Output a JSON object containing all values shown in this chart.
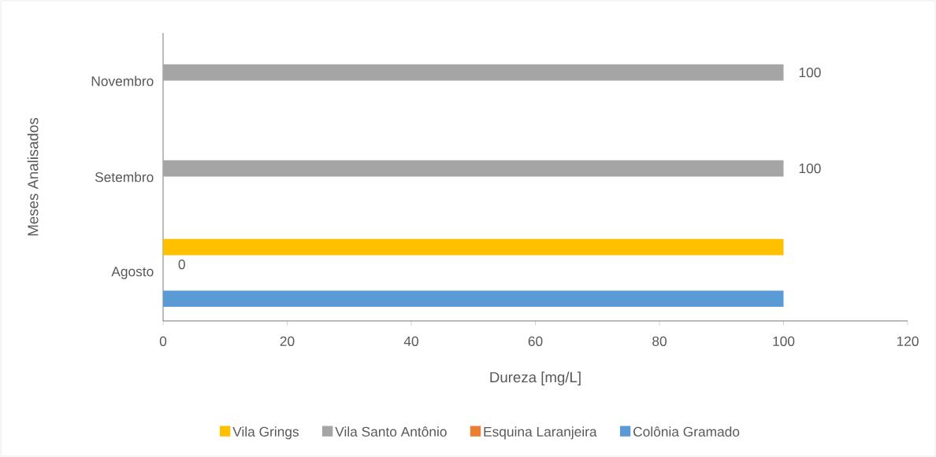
{
  "chart_data": {
    "type": "bar",
    "orientation": "horizontal",
    "xlabel": "Dureza [mg/L]",
    "ylabel": "Meses Analisados",
    "categories": [
      "Novembro",
      "Setembro",
      "Agosto"
    ],
    "series": [
      {
        "name": "Vila Grings",
        "color": "#ffc000",
        "values": [
          null,
          null,
          100
        ]
      },
      {
        "name": "Vila Santo Antônio",
        "color": "#a5a5a5",
        "values": [
          100,
          100,
          0
        ],
        "value_labels": [
          "100",
          "100",
          "0"
        ]
      },
      {
        "name": "Esquina Laranjeira",
        "color": "#ed7d31",
        "values": [
          null,
          null,
          null
        ]
      },
      {
        "name": "Colônia Gramado",
        "color": "#5b9bd5",
        "values": [
          null,
          null,
          100
        ]
      }
    ],
    "xlim": [
      0,
      120
    ],
    "xticks": [
      0,
      20,
      40,
      60,
      80,
      100,
      120
    ],
    "grid": false,
    "legend": "bottom"
  }
}
